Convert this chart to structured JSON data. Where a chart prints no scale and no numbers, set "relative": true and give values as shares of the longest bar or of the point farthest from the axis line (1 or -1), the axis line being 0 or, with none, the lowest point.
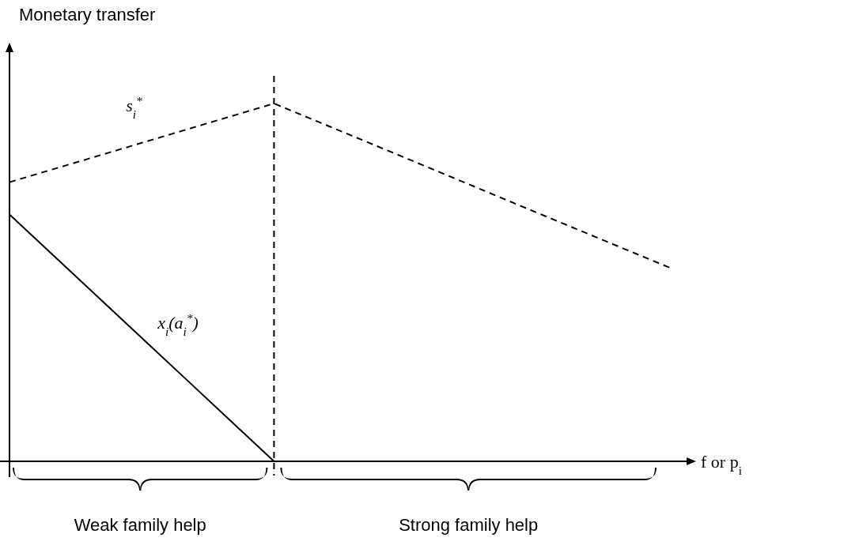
{
  "chart_data": {
    "type": "line",
    "relative": true,
    "ylabel": "Monetary transfer",
    "xlabel": "f or p$_{i}$",
    "categories": [
      null,
      null,
      null,
      null,
      null,
      null
    ],
    "series": [
      {
        "name": "s$_{i}$$^{*}$",
        "color": "#000000",
        "line_style": "dashed",
        "values": [
          0.78,
          0.89,
          1,
          0.847,
          0.693,
          0.54
        ]
      },
      {
        "name": "x$_{i}$(a$_{i}$$^{*}$)",
        "color": "#000000",
        "line_style": "solid",
        "values": [
          0.69,
          0.345,
          0,
          null,
          null,
          null
        ]
      }
    ],
    "annotations": [
      "Weak family help",
      "Strong family help"
    ]
  }
}
